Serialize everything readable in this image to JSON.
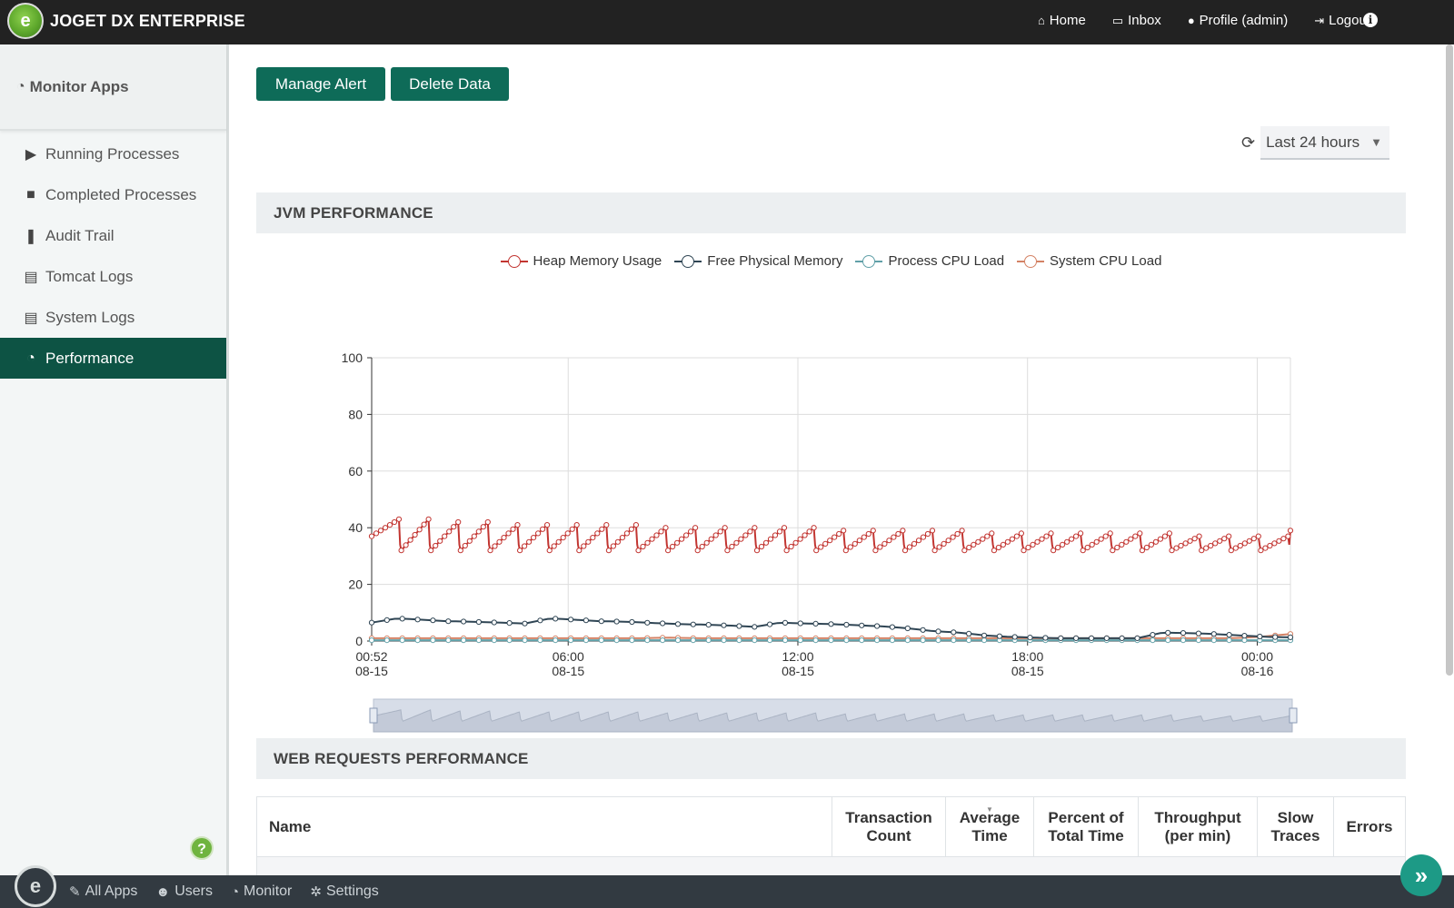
{
  "brand": {
    "name": "JOGET DX ENTERPRISE",
    "logo_icon": "joget-logo"
  },
  "topnav": [
    {
      "label": "Home",
      "icon": "home-icon",
      "glyph": "⌂"
    },
    {
      "label": "Inbox",
      "icon": "inbox-icon",
      "glyph": "▭"
    },
    {
      "label": "Profile (admin)",
      "icon": "user-icon",
      "glyph": "●"
    },
    {
      "label": "Logout",
      "icon": "logout-icon",
      "glyph": "⇥"
    }
  ],
  "sidebar": {
    "title": "Monitor Apps",
    "items": [
      {
        "label": "Running Processes",
        "icon": "play-icon",
        "glyph": "▶"
      },
      {
        "label": "Completed Processes",
        "icon": "stop-icon",
        "glyph": "■"
      },
      {
        "label": "Audit Trail",
        "icon": "footsteps-icon",
        "glyph": "❚"
      },
      {
        "label": "Tomcat Logs",
        "icon": "scroll-icon",
        "glyph": "▤"
      },
      {
        "label": "System Logs",
        "icon": "scroll-icon",
        "glyph": "▤"
      },
      {
        "label": "Performance",
        "icon": "dashboard-icon",
        "glyph": "◔",
        "active": true
      }
    ]
  },
  "toolbar": {
    "manage_alert": "Manage Alert",
    "delete_data": "Delete Data"
  },
  "range": {
    "value": "Last 24 hours"
  },
  "sections": {
    "jvm": "JVM PERFORMANCE",
    "web": "WEB REQUESTS PERFORMANCE"
  },
  "chart_data": {
    "type": "line",
    "legend_position": "top-center",
    "grid": true,
    "ylim": [
      0,
      100
    ],
    "yticks": [
      0,
      20,
      40,
      60,
      80,
      100
    ],
    "xticks": [
      {
        "time": "00:52",
        "date": "08-15"
      },
      {
        "time": "06:00",
        "date": "08-15"
      },
      {
        "time": "12:00",
        "date": "08-15"
      },
      {
        "time": "18:00",
        "date": "08-15"
      },
      {
        "time": "00:00",
        "date": "08-16"
      }
    ],
    "x_range": [
      "08-15 00:52",
      "08-16 00:52"
    ],
    "series": [
      {
        "name": "Heap Memory Usage",
        "color": "#c23531",
        "sawtooth_peaks": [
          43,
          43,
          42,
          42,
          41,
          41,
          41,
          41,
          41,
          40,
          40,
          40,
          40,
          40,
          40,
          39,
          39,
          39,
          39,
          39,
          38,
          38,
          38,
          38,
          38,
          38,
          38,
          37,
          37,
          37,
          37
        ],
        "sawtooth_trough": 32,
        "start": 37,
        "end": 39
      },
      {
        "name": "Free Physical Memory",
        "color": "#2f4554",
        "values": [
          6.5,
          8,
          7.5,
          7,
          6.8,
          6.5,
          6.2,
          8,
          7.5,
          7,
          6.8,
          6.4,
          6,
          5.8,
          5.5,
          5,
          6.5,
          6.2,
          6,
          5.6,
          5.2,
          4.5,
          3.5,
          3,
          2,
          1.5,
          1.2,
          1,
          1,
          1,
          1,
          3,
          2.8,
          2.5,
          2,
          1.5,
          1.3
        ]
      },
      {
        "name": "Process CPU Load",
        "color": "#61a0a8",
        "values": [
          0.3,
          0.3,
          0.3,
          0.3,
          0.3,
          0.3,
          0.3
        ]
      },
      {
        "name": "System CPU Load",
        "color": "#d48265",
        "values": [
          1,
          1,
          1,
          1,
          1,
          1,
          1,
          1,
          1,
          1,
          1.2,
          1,
          1,
          1,
          1,
          1,
          1,
          1,
          1,
          1,
          1,
          1,
          1,
          1,
          1,
          1,
          1,
          1,
          1,
          1,
          1.5,
          2.5
        ]
      }
    ]
  },
  "table": {
    "columns": [
      "Name",
      "Transaction Count",
      "Average Time",
      "Percent of Total Time",
      "Throughput (per min)",
      "Slow Traces",
      "Errors"
    ],
    "sort_column": "Average Time"
  },
  "bottombar": [
    {
      "label": "All Apps",
      "icon": "wrench-icon",
      "glyph": "✎"
    },
    {
      "label": "Users",
      "icon": "users-icon",
      "glyph": "☻"
    },
    {
      "label": "Monitor",
      "icon": "dashboard-icon",
      "glyph": "◔"
    },
    {
      "label": "Settings",
      "icon": "gears-icon",
      "glyph": "✲"
    }
  ]
}
